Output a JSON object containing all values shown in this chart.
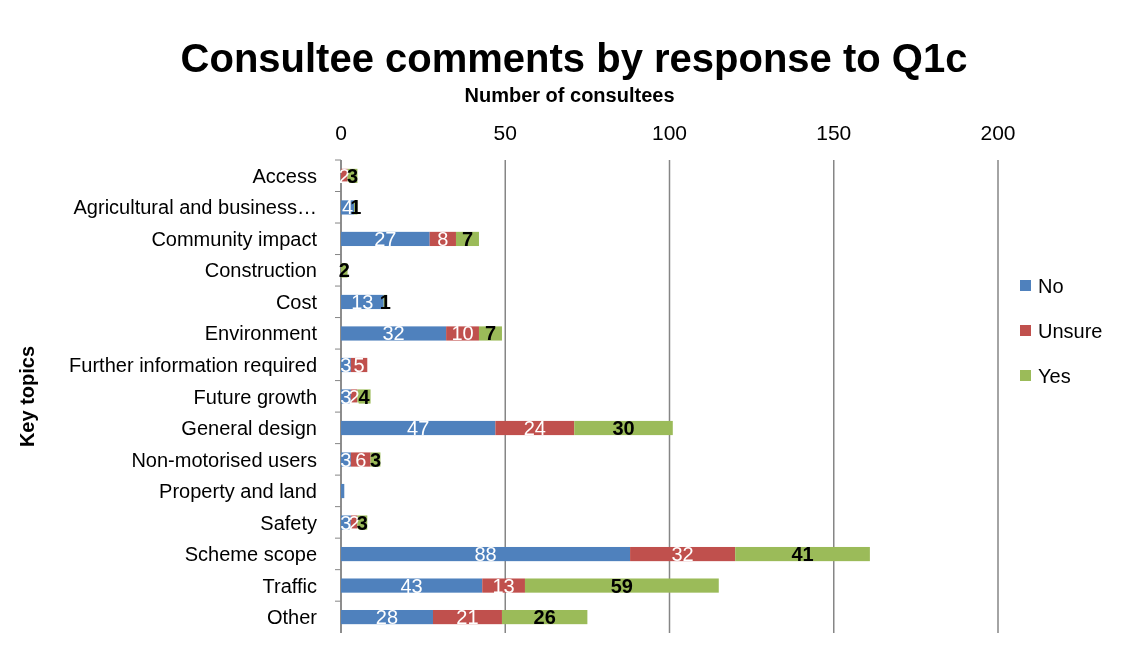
{
  "chart_data": {
    "type": "bar",
    "orientation": "horizontal",
    "stacked": true,
    "title": "Consultee comments by response to Q1c",
    "xlabel": "Number of consultees",
    "ylabel": "Key topics",
    "categories": [
      "Access",
      "Agricultural and business…",
      "Community impact",
      "Construction",
      "Cost",
      "Environment",
      "Further information required",
      "Future growth",
      "General design",
      "Non-motorised users",
      "Property and land",
      "Safety",
      "Scheme scope",
      "Traffic",
      "Other"
    ],
    "series": [
      {
        "name": "No",
        "color": "#4f81bd",
        "values": [
          null,
          4,
          27,
          null,
          13,
          32,
          3,
          3,
          47,
          3,
          1,
          3,
          88,
          43,
          28
        ],
        "value_labels": [
          null,
          "4",
          "27",
          null,
          "13",
          "32",
          "3",
          "3",
          "47",
          "3",
          null,
          "3",
          "88",
          "43",
          "28"
        ]
      },
      {
        "name": "Unsure",
        "color": "#c0504d",
        "values": [
          2,
          null,
          8,
          null,
          null,
          10,
          5,
          2,
          24,
          6,
          null,
          2,
          32,
          13,
          21
        ]
      },
      {
        "name": "Yes",
        "color": "#9bbb59",
        "values": [
          3,
          1,
          7,
          2,
          1,
          7,
          null,
          4,
          30,
          3,
          null,
          3,
          41,
          59,
          26
        ]
      }
    ],
    "xlim": [
      0,
      200
    ],
    "xticks": [
      0,
      50,
      100,
      150,
      200
    ],
    "grid": "x",
    "legend": "right",
    "data_labels": true
  }
}
